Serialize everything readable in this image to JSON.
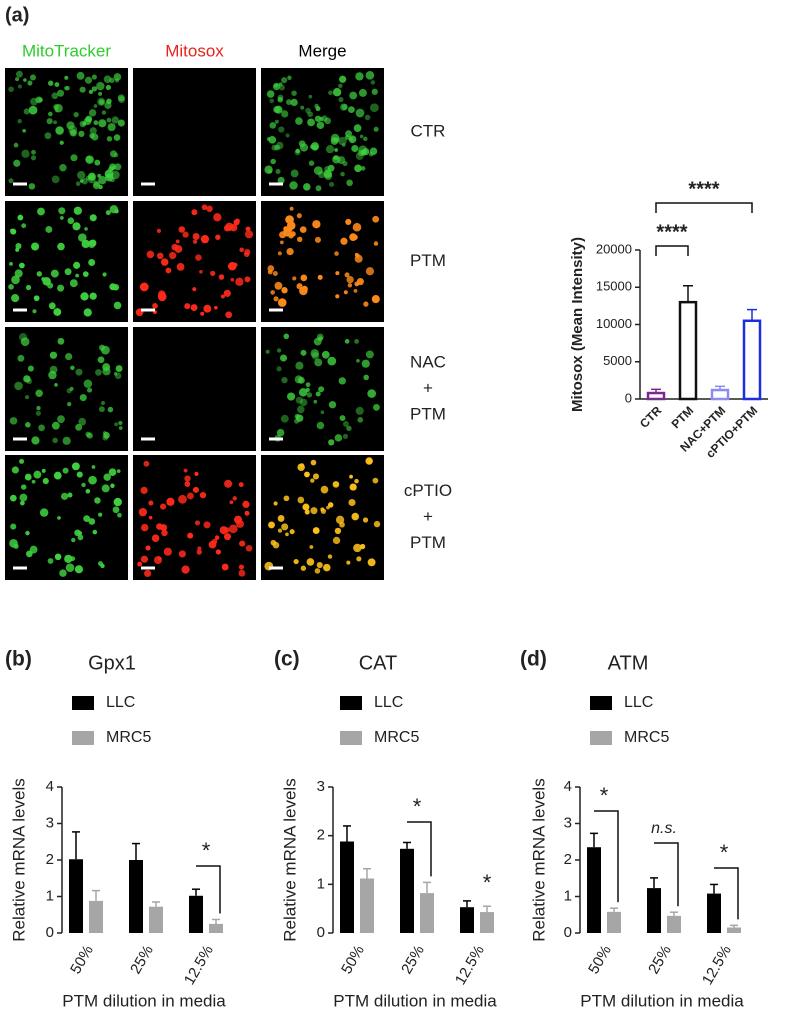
{
  "panel_a": {
    "label": "(a)",
    "columns": [
      "MitoTracker",
      "Mitosox",
      "Merge"
    ],
    "rows": [
      [
        "CTR"
      ],
      [
        "PTM"
      ],
      [
        "NAC",
        "+",
        "PTM"
      ],
      [
        "cPTIO",
        "+",
        "PTM"
      ]
    ]
  },
  "chart_data": [
    {
      "type": "bar",
      "ylabel": "Mitosox (Mean Intensity)",
      "categories": [
        "CTR",
        "PTM",
        "NAC+PTM",
        "cPTIO+PTM"
      ],
      "values": [
        800,
        13000,
        1200,
        10500
      ],
      "errors": [
        500,
        2200,
        500,
        1500
      ],
      "colors": [
        "#7a2a8c",
        "#111111",
        "#8c8cf0",
        "#1c2fe0"
      ],
      "bar_style": "outline",
      "ylim": [
        0,
        20000
      ],
      "yticks": [
        0,
        5000,
        10000,
        15000,
        20000
      ],
      "annotations": [
        {
          "text": "****"
        },
        {
          "text": "****"
        }
      ]
    },
    {
      "type": "grouped_bar",
      "panel_label": "(b)",
      "title": "Gpx1",
      "ylabel": "Relative mRNA levels",
      "xlabel": "PTM dilution in media",
      "categories": [
        "50%",
        "25%",
        "12.5%"
      ],
      "series": [
        {
          "name": "LLC",
          "color": "#000000",
          "values": [
            2.02,
            2.0,
            1.02
          ],
          "errors": [
            0.75,
            0.45,
            0.18
          ]
        },
        {
          "name": "MRC5",
          "color": "#a6a6a6",
          "values": [
            0.88,
            0.72,
            0.25
          ],
          "errors": [
            0.28,
            0.13,
            0.12
          ]
        }
      ],
      "ylim": [
        0,
        4
      ],
      "yticks": [
        0,
        1,
        2,
        3,
        4
      ],
      "annotations": [
        {
          "text": "*"
        }
      ]
    },
    {
      "type": "grouped_bar",
      "panel_label": "(c)",
      "title": "CAT",
      "ylabel": "Relative mRNA levels",
      "xlabel": "PTM dilution in media",
      "categories": [
        "50%",
        "25%",
        "12.5%"
      ],
      "series": [
        {
          "name": "LLC",
          "color": "#000000",
          "values": [
            1.88,
            1.73,
            0.53
          ],
          "errors": [
            0.32,
            0.13,
            0.13
          ]
        },
        {
          "name": "MRC5",
          "color": "#a6a6a6",
          "values": [
            1.12,
            0.82,
            0.43
          ],
          "errors": [
            0.2,
            0.22,
            0.12
          ]
        }
      ],
      "ylim": [
        0,
        3
      ],
      "yticks": [
        0,
        1,
        2,
        3
      ],
      "annotations": [
        {
          "text": "*"
        },
        {
          "text": "*"
        }
      ]
    },
    {
      "type": "grouped_bar",
      "panel_label": "(d)",
      "title": "ATM",
      "ylabel": "Relative mRNA levels",
      "xlabel": "PTM dilution in media",
      "categories": [
        "50%",
        "25%",
        "12.5%"
      ],
      "series": [
        {
          "name": "LLC",
          "color": "#000000",
          "values": [
            2.35,
            1.23,
            1.08
          ],
          "errors": [
            0.38,
            0.28,
            0.25
          ]
        },
        {
          "name": "MRC5",
          "color": "#a6a6a6",
          "values": [
            0.58,
            0.47,
            0.15
          ],
          "errors": [
            0.1,
            0.1,
            0.06
          ]
        }
      ],
      "ylim": [
        0,
        4
      ],
      "yticks": [
        0,
        1,
        2,
        3,
        4
      ],
      "annotations": [
        {
          "text": "*"
        },
        {
          "text": "n.s."
        },
        {
          "text": "*"
        }
      ]
    }
  ]
}
